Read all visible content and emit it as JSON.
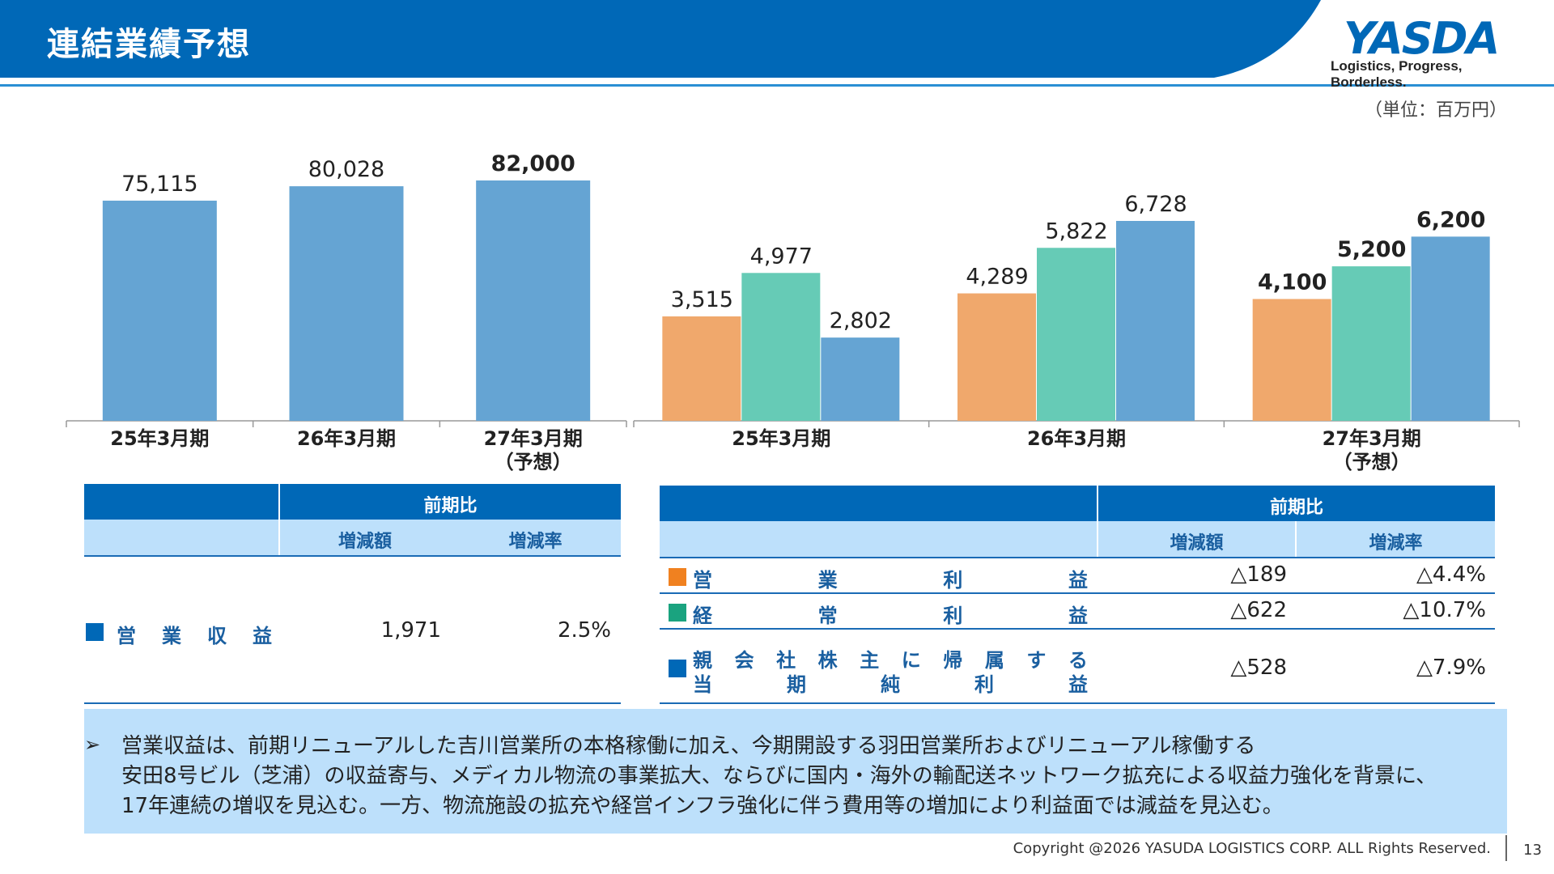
{
  "header": {
    "title": "連結業績予想",
    "logo_text": "YASDA",
    "logo_tagline": "Logistics, Progress, Borderless."
  },
  "unit_label": "（単位：百万円）",
  "colors": {
    "brand_blue": "#0068b7",
    "sales_bar": "#65a4d3",
    "operating_profit": "#f0a86c",
    "ordinary_profit": "#66cbb6",
    "net_income": "#65a4d3",
    "table_header": "#0068b7",
    "table_subheader": "#bde0fb"
  },
  "chart_data": [
    {
      "type": "bar",
      "categories": [
        "25年3月期",
        "26年3月期",
        "27年3月期"
      ],
      "category_sub": [
        "",
        "",
        "（予想）"
      ],
      "values": [
        75115,
        80028,
        82000
      ],
      "value_labels": [
        "75,115",
        "80,028",
        "82,000"
      ],
      "ylim": [
        0,
        90000
      ]
    },
    {
      "type": "bar",
      "categories": [
        "25年3月期",
        "26年3月期",
        "27年3月期"
      ],
      "category_sub": [
        "",
        "",
        "（予想）"
      ],
      "series": [
        {
          "values": [
            3515,
            4289,
            4100
          ],
          "value_labels": [
            "3,515",
            "4,289",
            "4,100"
          ]
        },
        {
          "values": [
            4977,
            5822,
            5200
          ],
          "value_labels": [
            "4,977",
            "5,822",
            "5,200"
          ]
        },
        {
          "values": [
            2802,
            6728,
            6200
          ],
          "value_labels": [
            "2,802",
            "6,728",
            "6,200"
          ]
        }
      ],
      "ylim": [
        0,
        8000
      ]
    }
  ],
  "left_table": {
    "header": "前期比",
    "col_change": "増減額",
    "col_rate": "増減率",
    "row": {
      "label_chars": [
        "営",
        "業",
        "収",
        "益"
      ],
      "change": "1,971",
      "rate": "2.5%"
    }
  },
  "right_table": {
    "header": "前期比",
    "col_change": "増減額",
    "col_rate": "増減率",
    "rows": [
      {
        "line1": [
          "営",
          "業",
          "利",
          "益"
        ],
        "line2": [],
        "change": "△189",
        "rate": "△4.4%"
      },
      {
        "line1": [
          "経",
          "常",
          "利",
          "益"
        ],
        "line2": [],
        "change": "△622",
        "rate": "△10.7%"
      },
      {
        "line1": [
          "親",
          "会",
          "社",
          "株",
          "主",
          "に",
          "帰",
          "属",
          "す",
          "る"
        ],
        "line2": [
          "当",
          "期",
          "純",
          "利",
          "益"
        ],
        "change": "△528",
        "rate": "△7.9%"
      }
    ]
  },
  "note": {
    "bullet": "➢",
    "lines": [
      "営業収益は、前期リニューアルした吉川営業所の本格稼働に加え、今期開設する羽田営業所およびリニューアル稼働する",
      "安田8号ビル（芝浦）の収益寄与、メディカル物流の事業拡大、ならびに国内・海外の輸配送ネットワーク拡充による収益力強化を背景に、",
      "17年連続の増収を見込む。一方、物流施設の拡充や経営インフラ強化に伴う費用等の増加により利益面では減益を見込む。"
    ]
  },
  "footer": {
    "copyright": "Copyright @2026 YASUDA LOGISTICS CORP.   ALL Rights Reserved.",
    "page": "13"
  }
}
